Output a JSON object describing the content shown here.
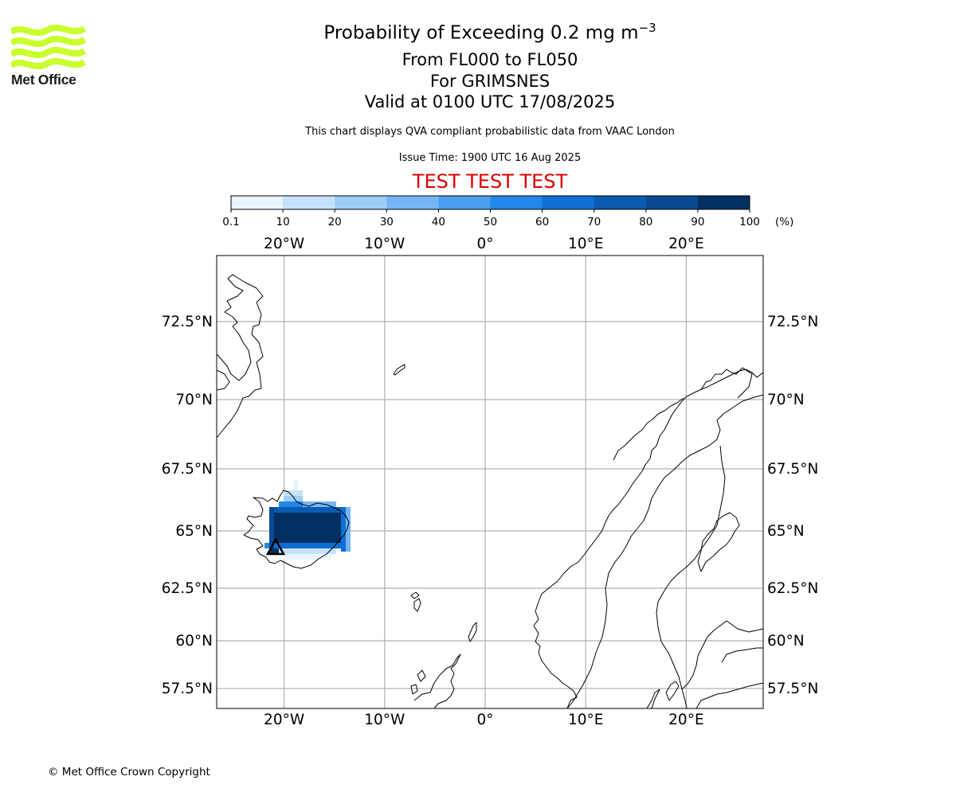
{
  "logo": {
    "text": "Met Office",
    "color": "#c8ff2d"
  },
  "header": {
    "title_main": "Probability of Exceeding 0.2 mg m",
    "title_sup": "−3",
    "level_range": "From FL000 to FL050",
    "volcano": "For GRIMSNES",
    "valid_time": "Valid at 0100 UTC 17/08/2025",
    "disclaimer": "This chart displays QVA compliant probabilistic data from VAAC London",
    "issue_time": "Issue Time: 1900 UTC 16 Aug 2025",
    "test_banner": "TEST TEST TEST",
    "test_color": "#dd0000"
  },
  "colorbar": {
    "ticks": [
      "0.1",
      "10",
      "20",
      "30",
      "40",
      "50",
      "60",
      "70",
      "80",
      "90",
      "100"
    ],
    "unit": "(%)",
    "colors": [
      "#eaf4ff",
      "#c6e2fb",
      "#9fcdf8",
      "#74b6f4",
      "#4aa0f0",
      "#2187ea",
      "#0f6fd4",
      "#0a5bb2",
      "#074a93",
      "#033063"
    ]
  },
  "map": {
    "lon_ticks": [
      {
        "lon": -20,
        "label": "20°W"
      },
      {
        "lon": -10,
        "label": "10°W"
      },
      {
        "lon": 0,
        "label": "0°"
      },
      {
        "lon": 10,
        "label": "10°E"
      },
      {
        "lon": 20,
        "label": "20°E"
      }
    ],
    "lat_ticks": [
      {
        "lat": 72.5,
        "label": "72.5°N"
      },
      {
        "lat": 70,
        "label": "70°N"
      },
      {
        "lat": 67.5,
        "label": "67.5°N"
      },
      {
        "lat": 65,
        "label": "65°N"
      },
      {
        "lat": 62.5,
        "label": "62.5°N"
      },
      {
        "lat": 60,
        "label": "60°N"
      },
      {
        "lat": 57.5,
        "label": "57.5°N"
      }
    ],
    "volcano_symbol": "triangle"
  },
  "footer": {
    "copyright": "© Met Office Crown Copyright"
  }
}
